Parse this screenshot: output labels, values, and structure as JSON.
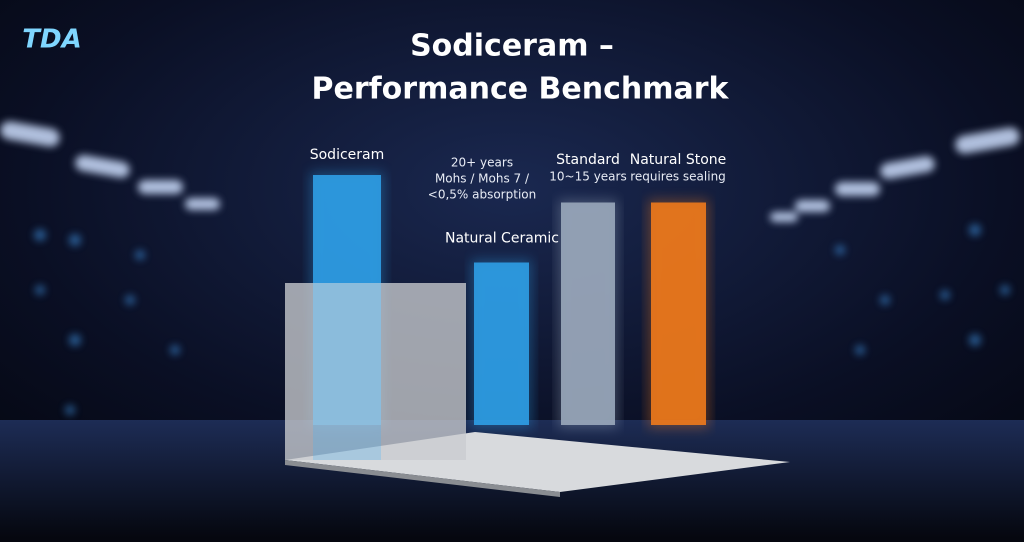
{
  "logo": "TDA",
  "chart_data": {
    "type": "bar",
    "title": "Sodiceram –",
    "subtitle": "Performance Benchmark",
    "categories": [
      "Sodiceram",
      "Natural Ceramic",
      "Standard",
      "Natural Stone"
    ],
    "values": [
      100,
      65,
      89,
      89
    ],
    "colors": [
      "#2f9fe6",
      "#2f9fe6",
      "#9aa8bb",
      "#f07a1c"
    ],
    "annotations": [
      [
        "20+ years",
        "Mohs / Mohs 7 /",
        "<0,5% absorption"
      ],
      [],
      [
        "10~15 years"
      ],
      [
        "requires sealing"
      ]
    ]
  }
}
